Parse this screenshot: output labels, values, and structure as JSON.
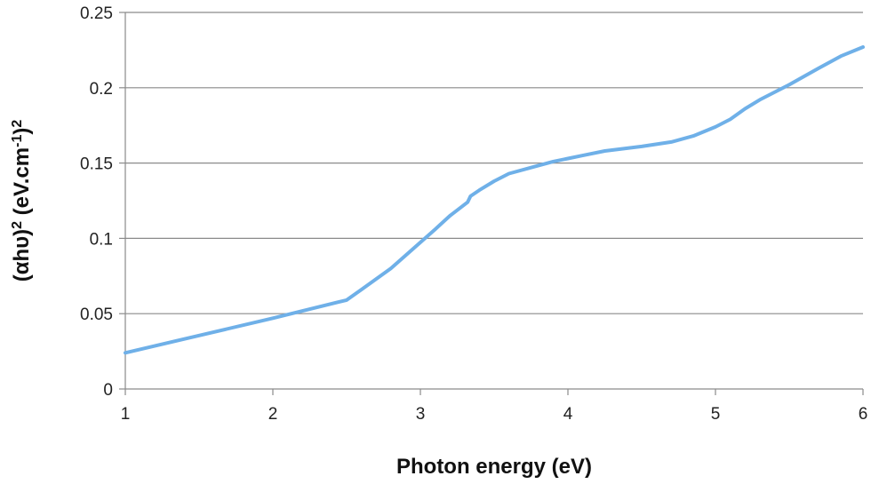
{
  "chart_data": {
    "type": "line",
    "xlabel": "Photon energy (eV)",
    "ylabel_parts": [
      "(αhυ)",
      "2",
      " (eV.cm",
      "-1",
      ")",
      "2"
    ],
    "xlim": [
      1,
      6
    ],
    "ylim": [
      0,
      0.25
    ],
    "x_ticks": [
      1,
      2,
      3,
      4,
      5,
      6
    ],
    "y_ticks": [
      0,
      0.05,
      0.1,
      0.15,
      0.2,
      0.25
    ],
    "x_tick_labels": [
      "1",
      "2",
      "3",
      "4",
      "5",
      "6"
    ],
    "y_tick_labels": [
      "0",
      "0.05",
      "0.1",
      "0.15",
      "0.2",
      "0.25"
    ],
    "grid": "horizontal",
    "series": [
      {
        "color": "#6fb0e8",
        "x": [
          1.0,
          1.5,
          2.0,
          2.5,
          2.6,
          2.8,
          2.95,
          3.1,
          3.2,
          3.32,
          3.34,
          3.4,
          3.5,
          3.6,
          3.75,
          3.9,
          4.0,
          4.1,
          4.25,
          4.5,
          4.7,
          4.85,
          5.0,
          5.1,
          5.2,
          5.3,
          5.5,
          5.7,
          5.85,
          6.0
        ],
        "y": [
          0.024,
          0.0355,
          0.047,
          0.059,
          0.066,
          0.08,
          0.093,
          0.106,
          0.115,
          0.124,
          0.128,
          0.132,
          0.138,
          0.143,
          0.147,
          0.151,
          0.153,
          0.155,
          0.158,
          0.161,
          0.164,
          0.168,
          0.174,
          0.179,
          0.186,
          0.192,
          0.202,
          0.213,
          0.221,
          0.227
        ]
      }
    ]
  }
}
